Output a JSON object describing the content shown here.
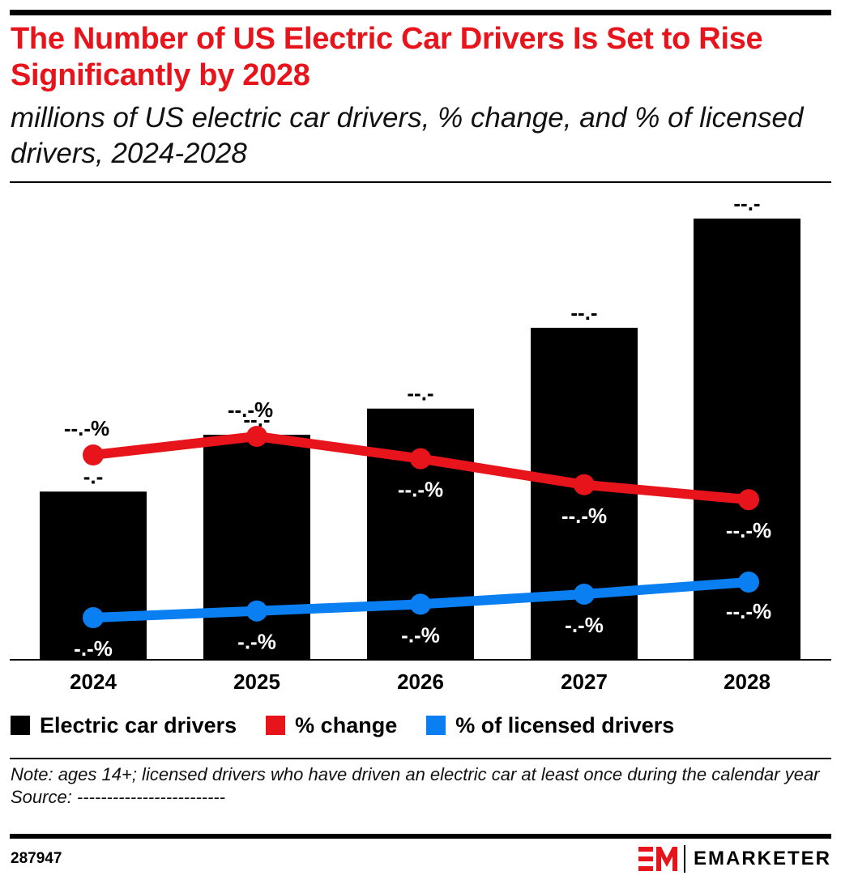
{
  "header": {
    "title": "The Number of US Electric Car Drivers Is Set to Rise Significantly by 2028",
    "subtitle": "millions of US electric car drivers, % change, and % of licensed drivers, 2024-2028"
  },
  "chart_data": {
    "type": "bar",
    "categories": [
      "2024",
      "2025",
      "2026",
      "2027",
      "2028"
    ],
    "series": [
      {
        "name": "Electric car drivers",
        "type": "bar",
        "color": "#000000",
        "values": [
          7.7,
          10.3,
          11.5,
          15.2,
          20.2
        ],
        "labels": [
          "-.-",
          "--.-",
          "--.-",
          "--.-",
          "--.-"
        ]
      },
      {
        "name": "% change",
        "type": "line",
        "color": "#e8141c",
        "values": [
          33.0,
          35.5,
          32.5,
          29.0,
          27.0
        ],
        "labels": [
          "--.-%",
          "--.-%",
          "--.-%",
          "--.-%",
          "--.-%"
        ]
      },
      {
        "name": "% of licensed drivers",
        "type": "line",
        "color": "#0a7ff2",
        "values": [
          4.5,
          5.5,
          6.5,
          8.0,
          9.8
        ],
        "labels": [
          "-.-%",
          "-.-%",
          "-.-%",
          "-.-%",
          "--.-%"
        ]
      }
    ],
    "grid": false,
    "legend": "bottom"
  },
  "legend": {
    "items": [
      {
        "label": "Electric car drivers",
        "color": "#000000"
      },
      {
        "label": "% change",
        "color": "#e8141c"
      },
      {
        "label": "% of licensed drivers",
        "color": "#0a7ff2"
      }
    ]
  },
  "footer": {
    "note": "Note: ages 14+; licensed drivers who have driven an electric car at least once during the calendar year",
    "source": "Source: -------------------------",
    "chart_id": "287947",
    "brand": "EMARKETER",
    "brand_color": "#e8141c"
  }
}
